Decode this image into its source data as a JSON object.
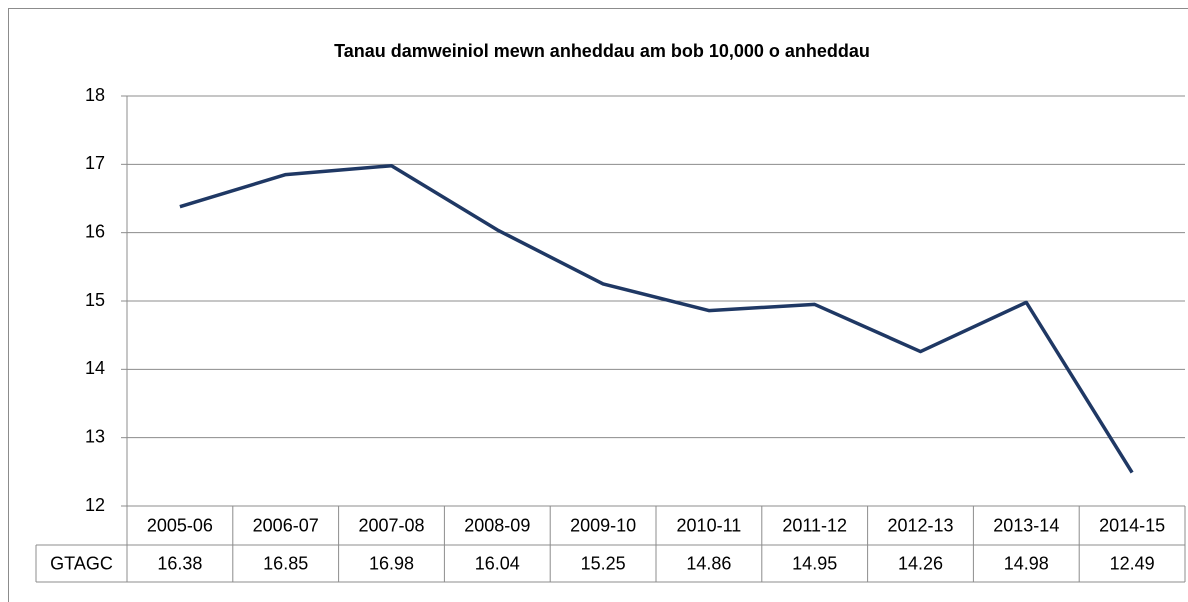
{
  "chart_data": {
    "type": "line",
    "title": "Tanau  damweiniol  mewn anheddau  am bob 10,000 o anheddau",
    "categories": [
      "2005-06",
      "2006-07",
      "2007-08",
      "2008-09",
      "2009-10",
      "2010-11",
      "2011-12",
      "2012-13",
      "2013-14",
      "2014-15"
    ],
    "series": [
      {
        "name": "GTAGC",
        "color": "#1f3864",
        "values": [
          16.38,
          16.85,
          16.98,
          16.04,
          15.25,
          14.86,
          14.95,
          14.26,
          14.98,
          12.49
        ]
      }
    ],
    "ylim": [
      12,
      18
    ],
    "yticks": [
      12,
      13,
      14,
      15,
      16,
      17,
      18
    ],
    "grid": true
  }
}
